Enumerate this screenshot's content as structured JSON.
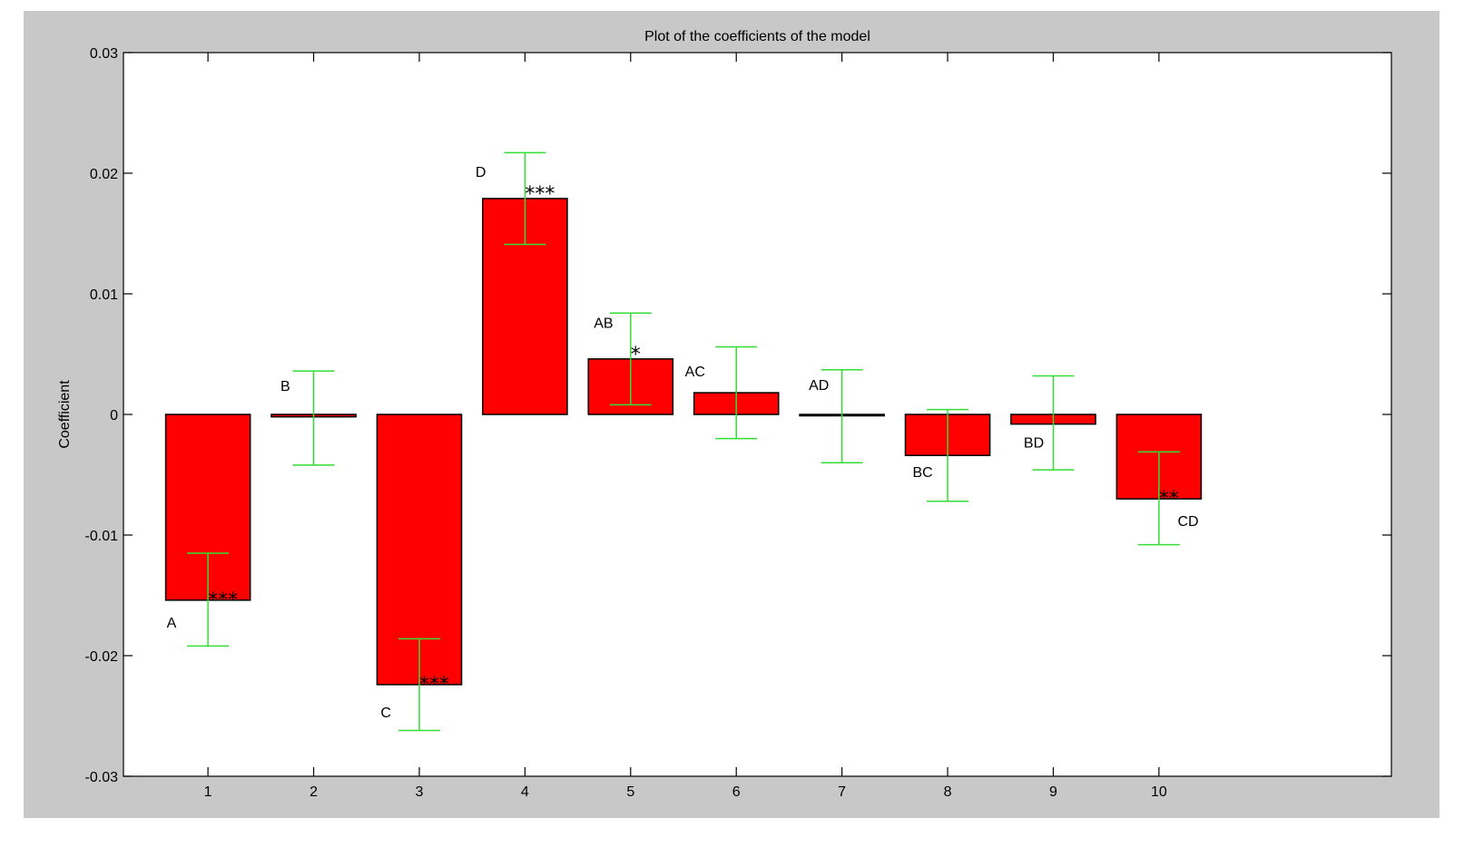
{
  "chart_data": {
    "type": "bar",
    "title": "Plot of the coefficients of the model",
    "xlabel": "",
    "ylabel": "Coefficient",
    "xlim": [
      0.2,
      12.2
    ],
    "ylim": [
      -0.03,
      0.03
    ],
    "x_ticks": [
      "1",
      "2",
      "3",
      "4",
      "5",
      "6",
      "7",
      "8",
      "9",
      "10"
    ],
    "y_ticks": [
      {
        "value": 0.03,
        "label": "0.03"
      },
      {
        "value": 0.02,
        "label": "0.02"
      },
      {
        "value": 0.01,
        "label": "0.01"
      },
      {
        "value": 0,
        "label": "0"
      },
      {
        "value": -0.01,
        "label": "-0.01"
      },
      {
        "value": -0.02,
        "label": "-0.02"
      },
      {
        "value": -0.03,
        "label": "-0.03"
      }
    ],
    "grid": false,
    "legend": "none",
    "colors": {
      "figure_background": "#c8c8c8",
      "axes_background": "#ffffff",
      "bar_fill": "#ff0000",
      "bar_edge": "#000000",
      "error_bar": "#33dd33"
    },
    "bars": [
      {
        "x": 1,
        "term": "A",
        "value": -0.0154,
        "err_low": -0.0192,
        "err_high": -0.0115,
        "significance": "***"
      },
      {
        "x": 2,
        "term": "B",
        "value": -0.0002,
        "err_low": -0.0042,
        "err_high": 0.0036,
        "significance": ""
      },
      {
        "x": 3,
        "term": "C",
        "value": -0.0224,
        "err_low": -0.0262,
        "err_high": -0.0186,
        "significance": "***"
      },
      {
        "x": 4,
        "term": "D",
        "value": 0.0179,
        "err_low": 0.0141,
        "err_high": 0.0217,
        "significance": "***"
      },
      {
        "x": 5,
        "term": "AB",
        "value": 0.0046,
        "err_low": 0.0008,
        "err_high": 0.0084,
        "significance": "*"
      },
      {
        "x": 6,
        "term": "AC",
        "value": 0.0018,
        "err_low": -0.002,
        "err_high": 0.0056,
        "significance": ""
      },
      {
        "x": 7,
        "term": "AD",
        "value": -0.0001,
        "err_low": -0.004,
        "err_high": 0.0037,
        "significance": ""
      },
      {
        "x": 8,
        "term": "BC",
        "value": -0.0034,
        "err_low": -0.0072,
        "err_high": 0.0004,
        "significance": ""
      },
      {
        "x": 9,
        "term": "BD",
        "value": -0.0008,
        "err_low": -0.0046,
        "err_high": 0.0032,
        "significance": ""
      },
      {
        "x": 10,
        "term": "CD",
        "value": -0.007,
        "err_low": -0.0108,
        "err_high": -0.0031,
        "significance": "**"
      }
    ]
  }
}
